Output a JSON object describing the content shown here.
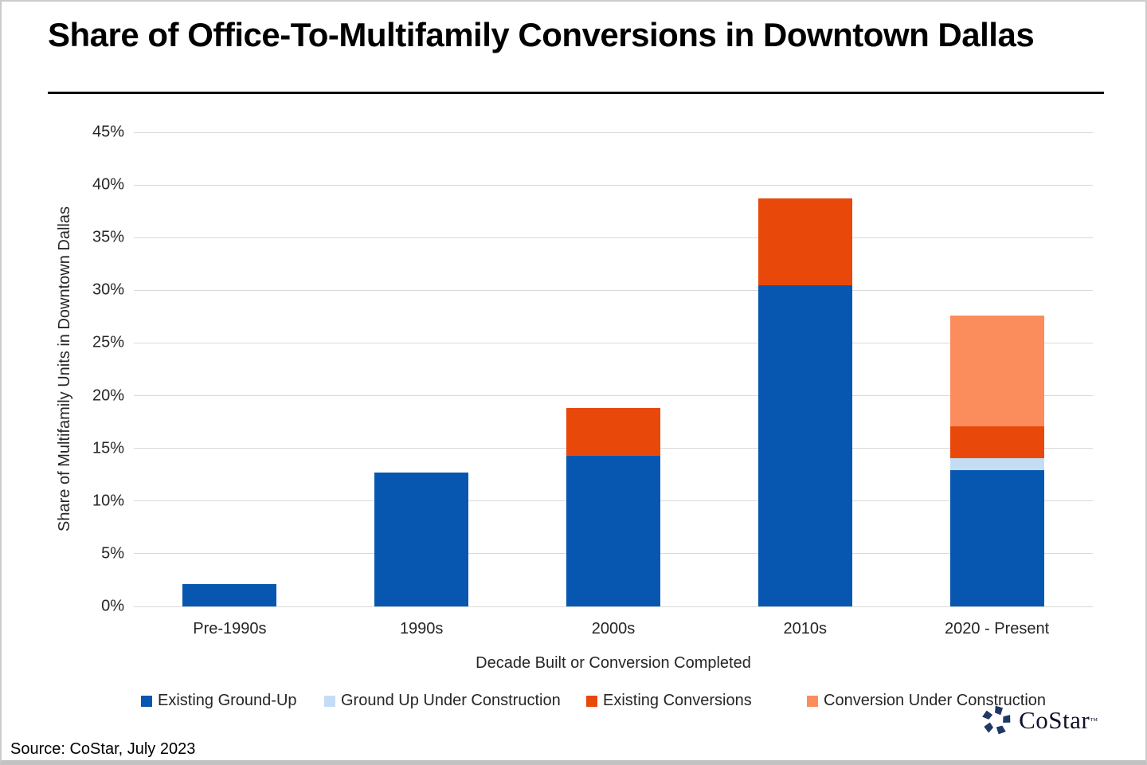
{
  "page": {
    "title": "Share of Office-To-Multifamily Conversions in Downtown Dallas",
    "source": "Source: CoStar, July 2023",
    "logo": {
      "name": "costar-logo",
      "text": "CoStar",
      "tm": "™",
      "color": "#1f3864"
    }
  },
  "chart_data": {
    "type": "bar",
    "stacked": true,
    "title": "Share of Office-To-Multifamily Conversions in Downtown Dallas",
    "xlabel": "Decade Built or Conversion Completed",
    "ylabel": "Share of Multifamily Units in Downtown Dallas",
    "ylim": [
      0,
      45
    ],
    "y_tick_step": 5,
    "y_tick_suffix": "%",
    "grid": "horizontal",
    "gridline_color": "#d9d9d9",
    "legend_position": "bottom",
    "categories": [
      "Pre-1990s",
      "1990s",
      "2000s",
      "2010s",
      "2020 - Present"
    ],
    "series": [
      {
        "name": "Existing Ground-Up",
        "color": "#0757b0",
        "values": [
          2.1,
          12.7,
          14.3,
          30.5,
          12.9
        ]
      },
      {
        "name": "Ground Up Under Construction",
        "color": "#c5dcf5",
        "values": [
          0,
          0,
          0,
          0,
          1.2
        ]
      },
      {
        "name": "Existing Conversions",
        "color": "#e8490a",
        "values": [
          0,
          0,
          4.5,
          8.2,
          3.0
        ]
      },
      {
        "name": "Conversion Under Construction",
        "color": "#fb8d5c",
        "values": [
          0,
          0,
          0,
          0,
          10.5
        ]
      }
    ]
  }
}
